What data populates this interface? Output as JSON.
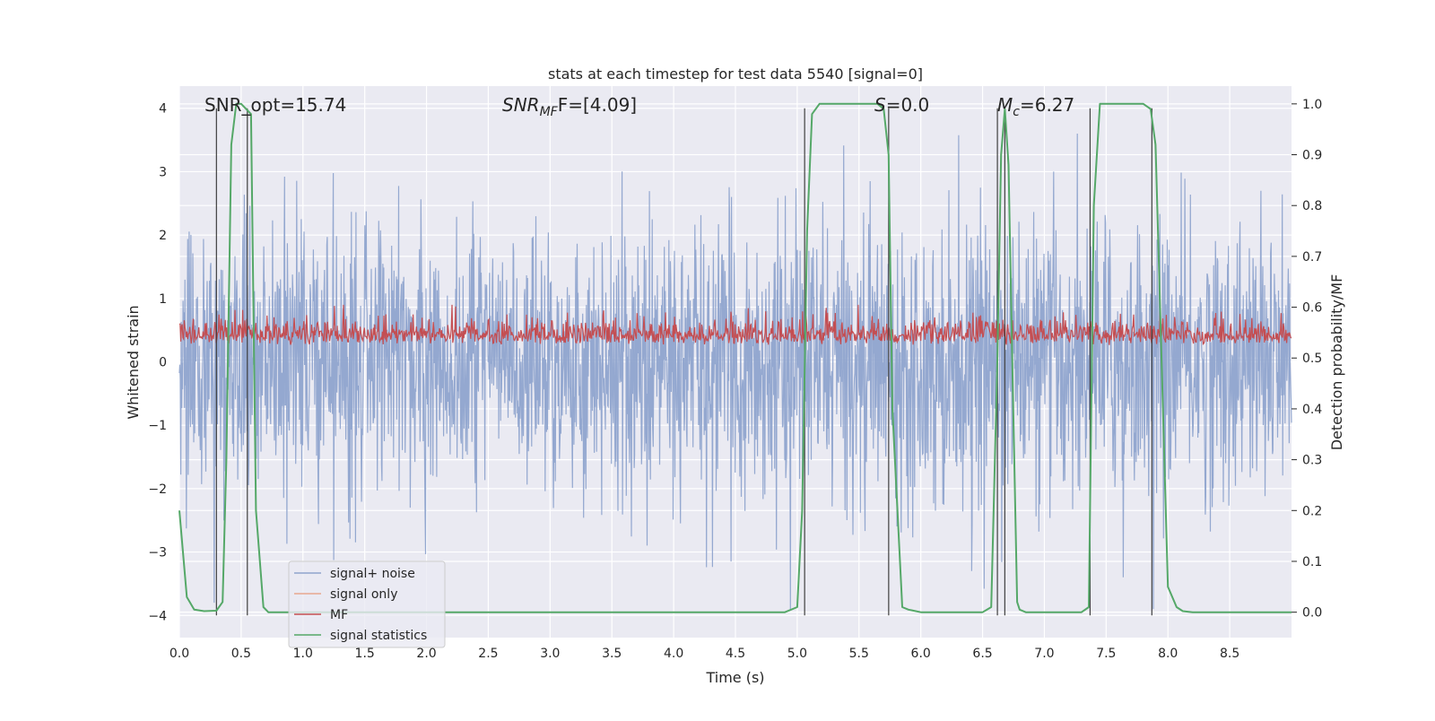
{
  "chart_data": {
    "type": "line",
    "title": "stats at each timestep for test data 5540 [signal=0]",
    "xlabel": "Time (s)",
    "ylabel_left": "Whitened strain",
    "ylabel_right": "Detection probability/MF",
    "xlim": [
      0,
      9.0
    ],
    "ylim_left": [
      -4.35,
      4.35
    ],
    "ylim_right": [
      -0.05,
      1.035
    ],
    "x_ticks": [
      0.0,
      0.5,
      1.0,
      1.5,
      2.0,
      2.5,
      3.0,
      3.5,
      4.0,
      4.5,
      5.0,
      5.5,
      6.0,
      6.5,
      7.0,
      7.5,
      8.0,
      8.5
    ],
    "x_tick_labels": [
      "0.0",
      "0.5",
      "1.0",
      "1.5",
      "2.0",
      "2.5",
      "3.0",
      "3.5",
      "4.0",
      "4.5",
      "5.0",
      "5.5",
      "6.0",
      "6.5",
      "7.0",
      "7.5",
      "8.0",
      "8.5"
    ],
    "y_left_ticks": [
      -4,
      -3,
      -2,
      -1,
      0,
      1,
      2,
      3,
      4
    ],
    "y_left_tick_labels": [
      "−4",
      "−3",
      "−2",
      "−1",
      "0",
      "1",
      "2",
      "3",
      "4"
    ],
    "y_right_ticks": [
      0.0,
      0.1,
      0.2,
      0.3,
      0.4,
      0.5,
      0.6,
      0.7,
      0.8,
      0.9,
      1.0
    ],
    "y_right_tick_labels": [
      "0.0",
      "0.1",
      "0.2",
      "0.3",
      "0.4",
      "0.5",
      "0.6",
      "0.7",
      "0.8",
      "0.9",
      "1.0"
    ],
    "annotations": {
      "snr_opt": "SNR_opt=15.74",
      "snr_mf_main": "SNR",
      "snr_mf_sub": "MF",
      "snr_mf_rest": "F=[4.09]",
      "s_main": "S",
      "s_rest": "=0.0",
      "mc_main": "M",
      "mc_sub": "c",
      "mc_rest": "=6.27"
    },
    "legend": {
      "position": "lower-left",
      "entries": [
        {
          "label": "signal+ noise",
          "color": "#8fa4cd"
        },
        {
          "label": "signal only",
          "color": "#e8a78f"
        },
        {
          "label": "MF",
          "color": "#c44e52"
        },
        {
          "label": "signal statistics",
          "color": "#55a868"
        }
      ]
    },
    "series": [
      {
        "name": "signal+ noise",
        "axis": "left",
        "style": "noise",
        "approx_range": [
          -3.9,
          3.6
        ]
      },
      {
        "name": "MF",
        "axis": "left",
        "style": "noise",
        "approx_range": [
          0.0,
          0.9
        ]
      },
      {
        "name": "signal statistics",
        "axis": "right",
        "x": [
          0.0,
          0.06,
          0.12,
          0.2,
          0.3,
          0.35,
          0.38,
          0.42,
          0.46,
          0.5,
          0.54,
          0.58,
          0.62,
          0.68,
          0.72,
          0.8,
          1.0,
          2.0,
          3.0,
          4.0,
          4.9,
          5.0,
          5.04,
          5.08,
          5.12,
          5.18,
          5.25,
          5.4,
          5.55,
          5.65,
          5.7,
          5.74,
          5.77,
          5.85,
          5.9,
          6.0,
          6.5,
          6.57,
          6.62,
          6.65,
          6.68,
          6.71,
          6.74,
          6.78,
          6.8,
          6.85,
          6.9,
          7.0,
          7.3,
          7.36,
          7.4,
          7.45,
          7.5,
          7.6,
          7.8,
          7.86,
          7.9,
          8.0,
          8.07,
          8.12,
          8.2,
          8.5,
          9.0
        ],
        "values": [
          0.2,
          0.03,
          0.005,
          0.002,
          0.003,
          0.02,
          0.3,
          0.92,
          1.0,
          1.0,
          0.99,
          0.98,
          0.2,
          0.01,
          0.0,
          0.0,
          0.0,
          0.0,
          0.0,
          0.0,
          0.0,
          0.01,
          0.2,
          0.75,
          0.98,
          1.0,
          1.0,
          1.0,
          1.0,
          1.0,
          0.99,
          0.9,
          0.4,
          0.01,
          0.005,
          0.0,
          0.0,
          0.01,
          0.5,
          0.9,
          0.99,
          0.88,
          0.5,
          0.02,
          0.005,
          0.0,
          0.0,
          0.0,
          0.0,
          0.01,
          0.8,
          1.0,
          1.0,
          1.0,
          1.0,
          0.99,
          0.92,
          0.05,
          0.01,
          0.002,
          0.0,
          0.0,
          0.0
        ]
      }
    ],
    "vlines": [
      0.3,
      0.55,
      5.06,
      5.74,
      6.62,
      6.68,
      7.37,
      7.87
    ]
  }
}
